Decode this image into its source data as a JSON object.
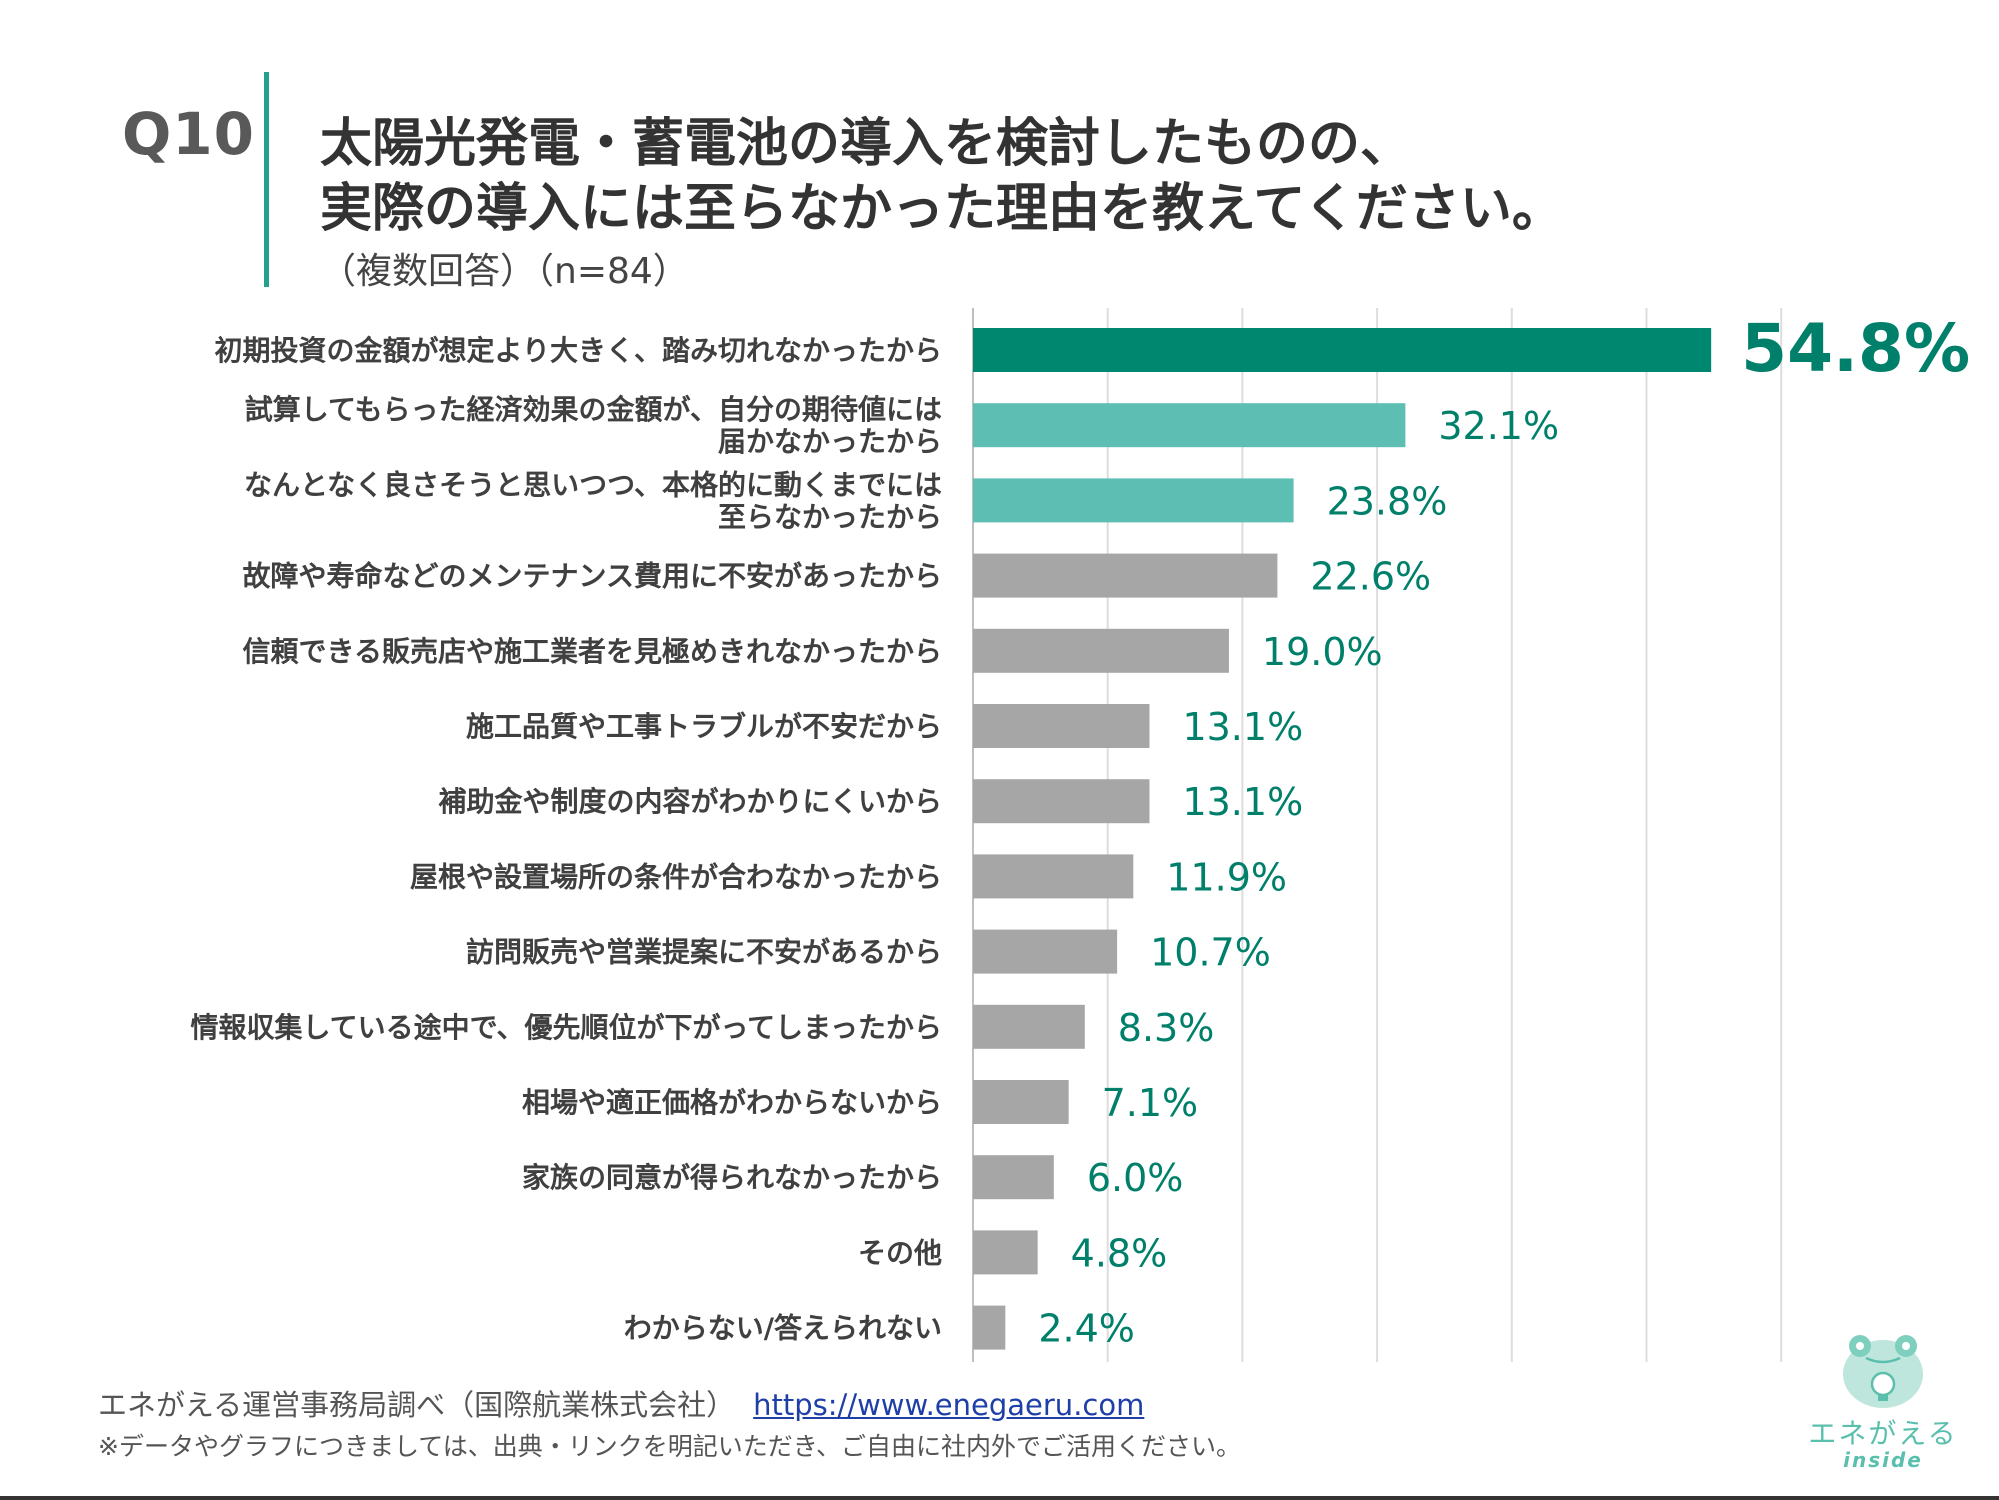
{
  "header": {
    "question_number": "Q10",
    "title_line1": "太陽光発電・蓄電池の導入を検討したものの、",
    "title_line2": "実際の導入には至らなかった理由を教えてください。",
    "subtitle": "（複数回答）（n=84）"
  },
  "chart_data": {
    "type": "bar",
    "orientation": "horizontal",
    "categories": [
      [
        "初期投資の金額が想定より大きく、踏み切れなかったから"
      ],
      [
        "試算してもらった経済効果の金額が、自分の期待値には",
        "届かなかったから"
      ],
      [
        "なんとなく良さそうと思いつつ、本格的に動くまでには",
        "至らなかったから"
      ],
      [
        "故障や寿命などのメンテナンス費用に不安があったから"
      ],
      [
        "信頼できる販売店や施工業者を見極めきれなかったから"
      ],
      [
        "施工品質や工事トラブルが不安だから"
      ],
      [
        "補助金や制度の内容がわかりにくいから"
      ],
      [
        "屋根や設置場所の条件が合わなかったから"
      ],
      [
        "訪問販売や営業提案に不安があるから"
      ],
      [
        "情報収集している途中で、優先順位が下がってしまったから"
      ],
      [
        "相場や適正価格がわからないから"
      ],
      [
        "家族の同意が得られなかったから"
      ],
      [
        "その他"
      ],
      [
        "わからない/答えられない"
      ]
    ],
    "values": [
      54.8,
      32.1,
      23.8,
      22.6,
      19.0,
      13.1,
      13.1,
      11.9,
      10.7,
      8.3,
      7.1,
      6.0,
      4.8,
      2.4
    ],
    "labels": [
      "54.8%",
      "32.1%",
      "23.8%",
      "22.6%",
      "19.0%",
      "13.1%",
      "13.1%",
      "11.9%",
      "10.7%",
      "8.3%",
      "7.1%",
      "6.0%",
      "4.8%",
      "2.4%"
    ],
    "bar_colors": [
      "#00876f",
      "#5dbfb3",
      "#5dbfb3",
      "#a6a6a6",
      "#a6a6a6",
      "#a6a6a6",
      "#a6a6a6",
      "#a6a6a6",
      "#a6a6a6",
      "#a6a6a6",
      "#a6a6a6",
      "#a6a6a6",
      "#a6a6a6",
      "#a6a6a6"
    ],
    "label_color": "#00806a",
    "xlim": [
      0,
      60
    ],
    "grid": true,
    "grid_step": 10
  },
  "footer": {
    "source": "エネがえる運営事務局調べ（国際航業株式会社）",
    "link": "https://www.enegaeru.com",
    "note": "※データやグラフにつきましては、出典・リンクを明記いただき、ご自由に社内外でご活用ください。"
  },
  "logo": {
    "icon": "frog-lightbulb-icon",
    "text": "エネがえる",
    "subtext": "inside",
    "color": "#5bbfae"
  }
}
